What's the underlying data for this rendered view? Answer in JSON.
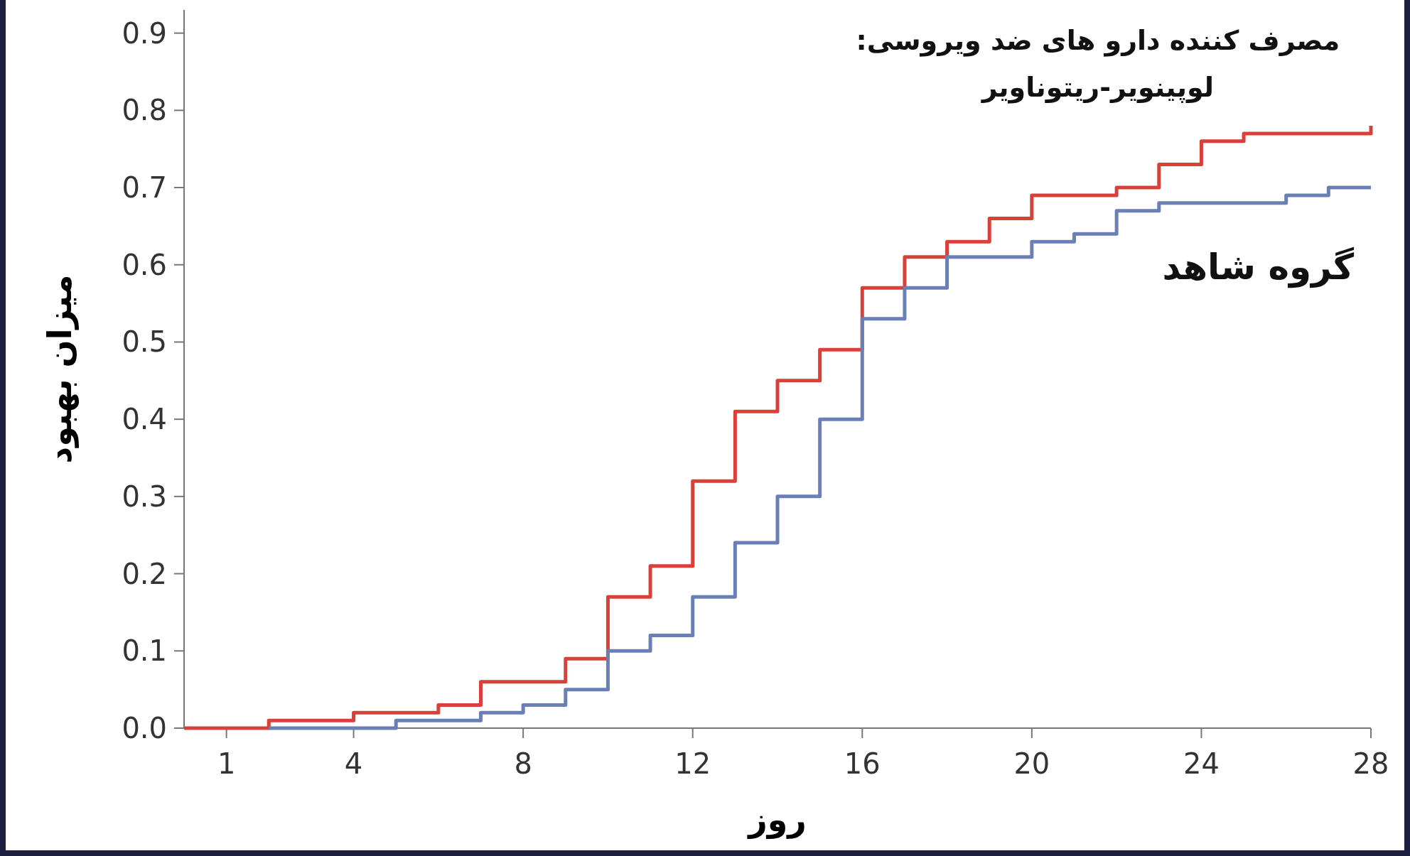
{
  "chart_data": {
    "type": "step",
    "xlabel": "روز",
    "ylabel": "میزان بهبود",
    "xlim": [
      0,
      28
    ],
    "ylim": [
      0,
      0.93
    ],
    "xticks": [
      1,
      4,
      8,
      12,
      16,
      20,
      24,
      28
    ],
    "yticks": [
      {
        "value": 0,
        "label": "0.0"
      },
      0.1,
      0.2,
      0.3,
      0.4,
      0.5,
      0.6,
      0.7,
      0.8,
      0.9
    ],
    "grid": false,
    "line_style": "solid",
    "marker": "none",
    "series": [
      {
        "name": "مصرف کننده دارو های ضد ویروسی:\nلوپینویر-ریتوناویر",
        "color": "#d9403a",
        "x": [
          0,
          2,
          4,
          6,
          7,
          9,
          10,
          11,
          12,
          13,
          14,
          15,
          16,
          17,
          18,
          19,
          20,
          22,
          23,
          24,
          25,
          28
        ],
        "values": [
          0,
          0.01,
          0.02,
          0.03,
          0.06,
          0.09,
          0.17,
          0.21,
          0.32,
          0.41,
          0.45,
          0.49,
          0.57,
          0.61,
          0.63,
          0.66,
          0.69,
          0.7,
          0.73,
          0.76,
          0.77,
          0.78
        ]
      },
      {
        "name": "گروه شاهد",
        "color": "#6a7fb5",
        "x": [
          2,
          5,
          7,
          8,
          9,
          10,
          11,
          12,
          13,
          14,
          15,
          16,
          17,
          18,
          20,
          21,
          22,
          23,
          26,
          27,
          28
        ],
        "values": [
          0,
          0.01,
          0.02,
          0.03,
          0.05,
          0.1,
          0.12,
          0.17,
          0.24,
          0.3,
          0.4,
          0.53,
          0.57,
          0.61,
          0.63,
          0.64,
          0.67,
          0.68,
          0.69,
          0.7,
          0.7
        ]
      }
    ]
  }
}
